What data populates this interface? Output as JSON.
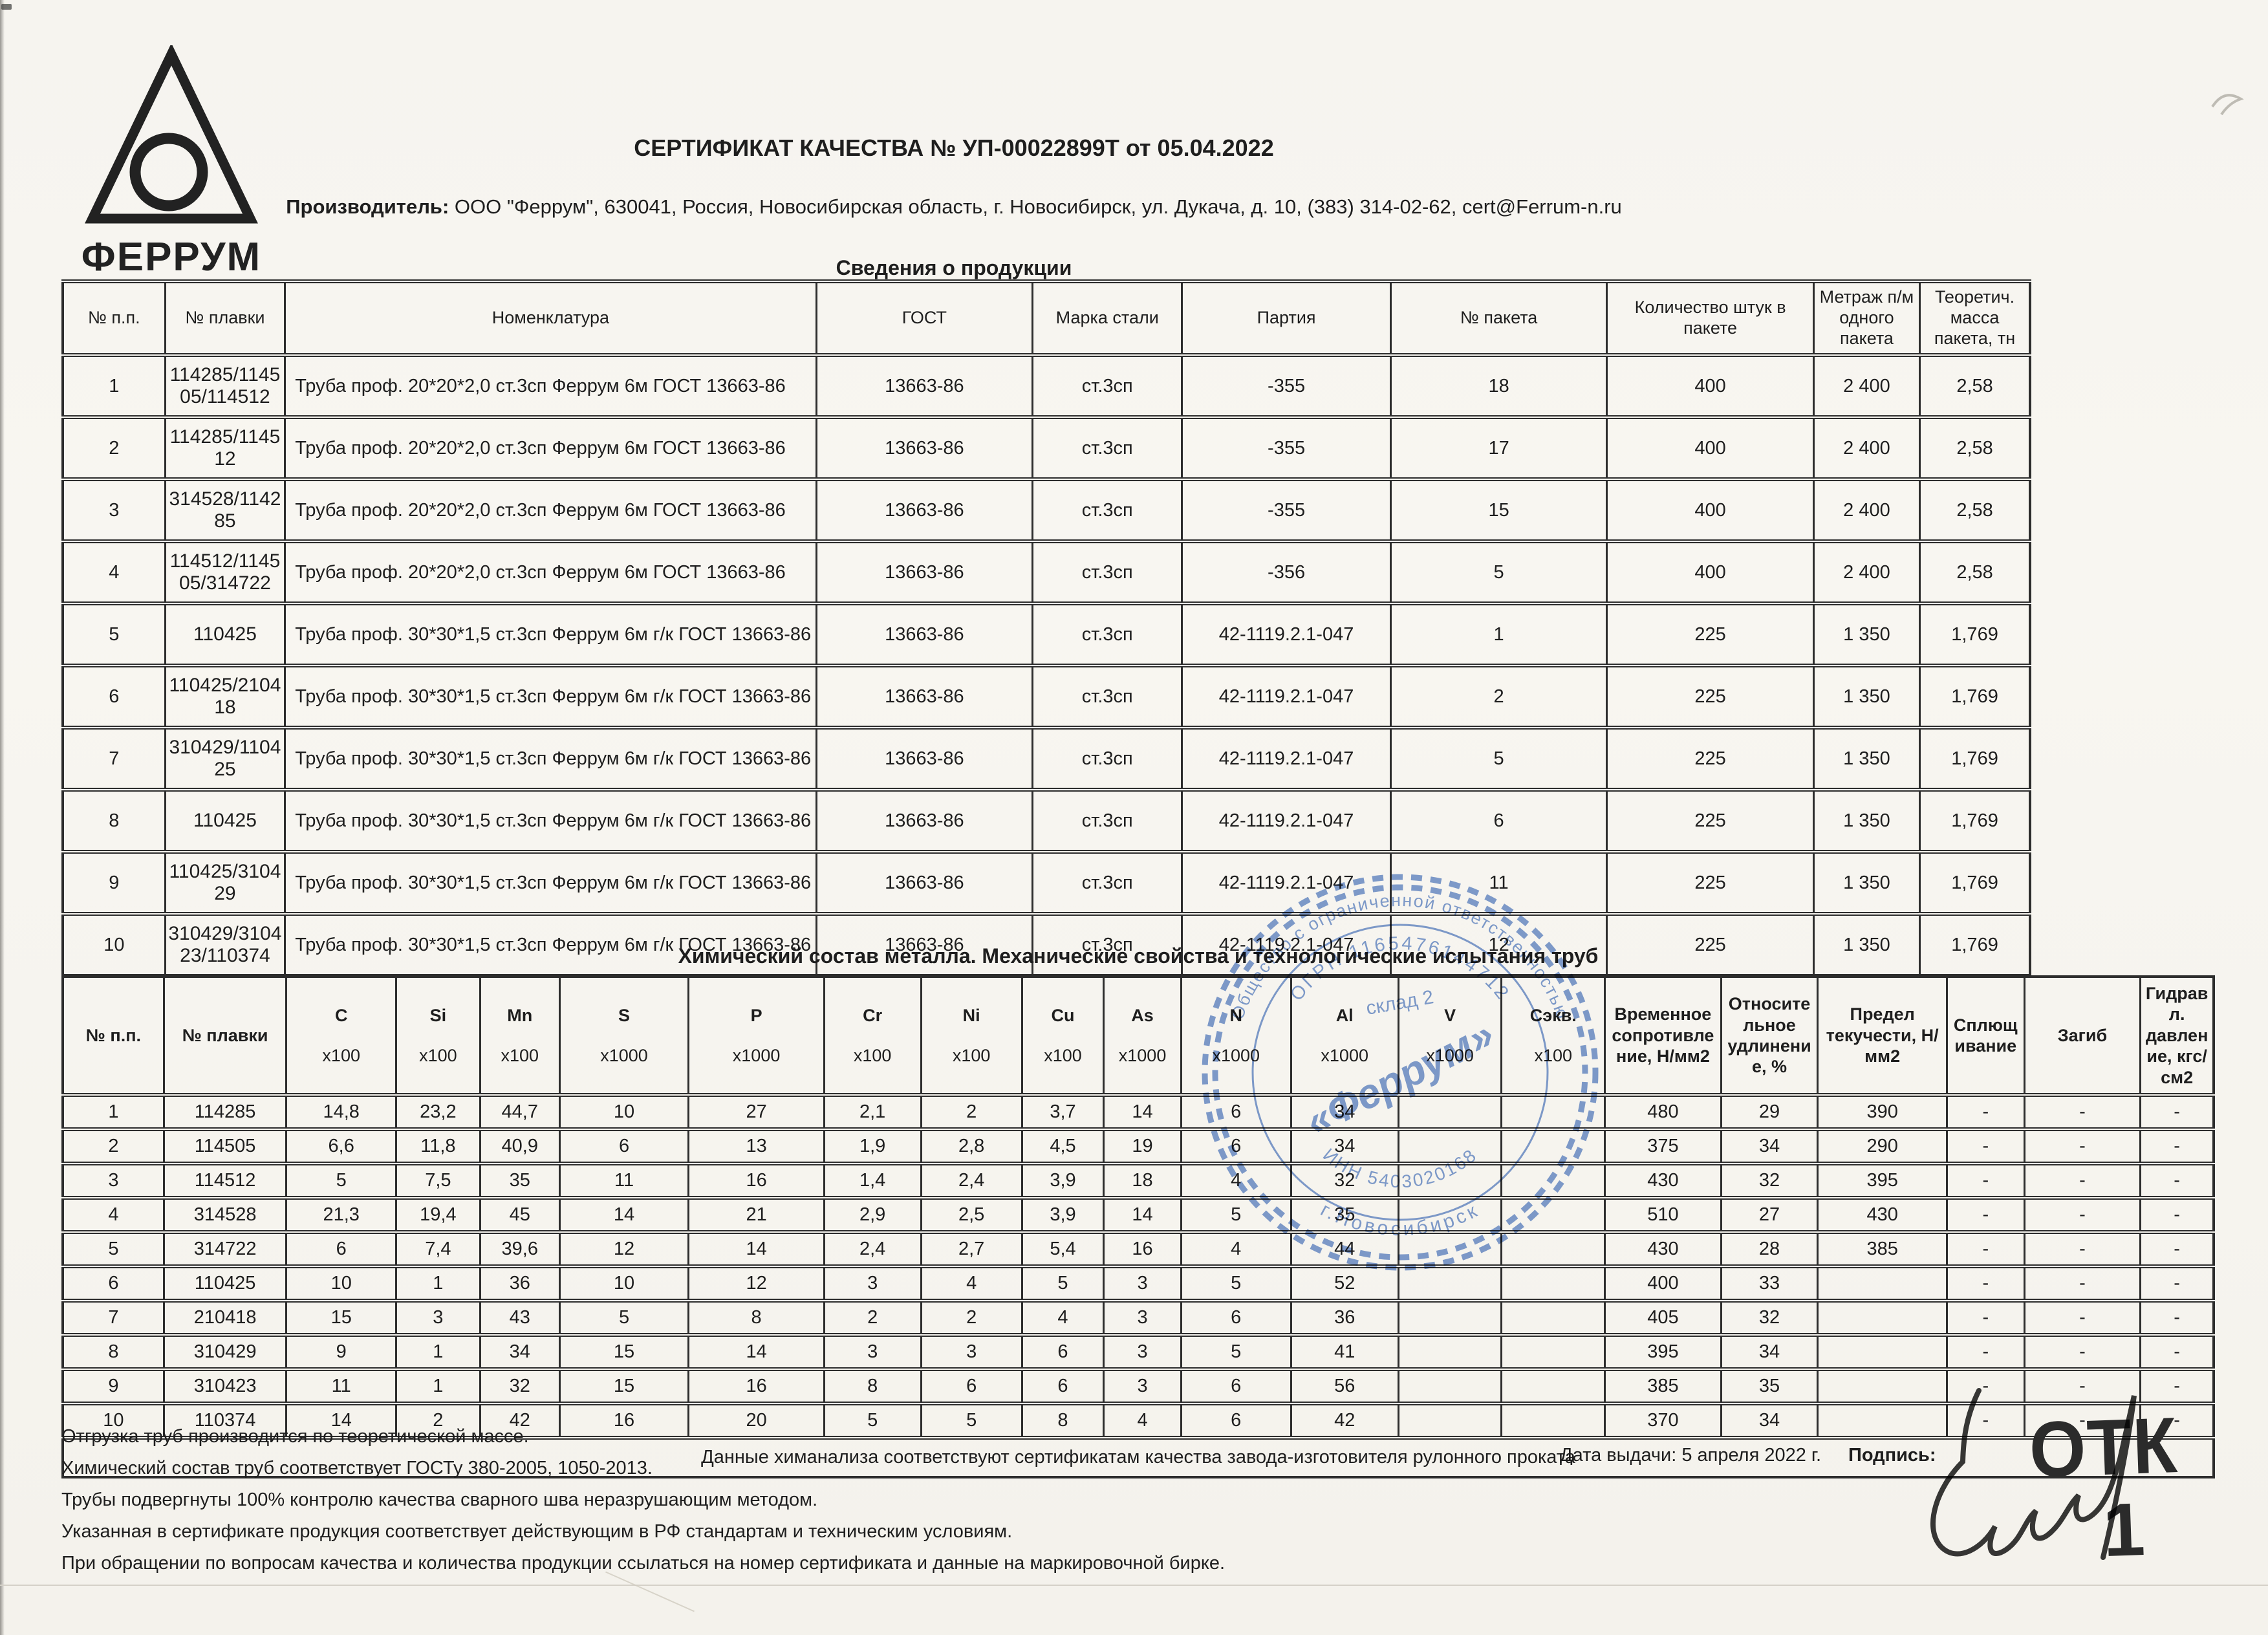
{
  "page": {
    "title": "СЕРТИФИКАТ КАЧЕСТВА № УП-00022899Т от 05.04.2022",
    "producer_label": "Производитель:",
    "producer_text": "ООО \"Феррум\", 630041, Россия, Новосибирская область, г. Новосибирск, ул. Дукача, д. 10, (383) 314-02-62, cert@Ferrum-n.ru",
    "logo_text": "ФЕРРУМ"
  },
  "products": {
    "section_title": "Сведения о продукции",
    "columns": [
      "№ п.п.",
      "№ плавки",
      "Номенклатура",
      "ГОСТ",
      "Марка стали",
      "Партия",
      "№ пакета",
      "Количество штук в пакете",
      "Метраж п/м одного пакета",
      "Теоретич. масса пакета, тн"
    ],
    "rows": [
      [
        "1",
        "114285/114505/114512",
        "Труба проф. 20*20*2,0 ст.3сп Феррум 6м ГОСТ 13663-86",
        "13663-86",
        "ст.3сп",
        "-355",
        "18",
        "400",
        "2 400",
        "2,58"
      ],
      [
        "2",
        "114285/114512",
        "Труба проф. 20*20*2,0 ст.3сп Феррум 6м ГОСТ 13663-86",
        "13663-86",
        "ст.3сп",
        "-355",
        "17",
        "400",
        "2 400",
        "2,58"
      ],
      [
        "3",
        "314528/114285",
        "Труба проф. 20*20*2,0 ст.3сп Феррум 6м ГОСТ 13663-86",
        "13663-86",
        "ст.3сп",
        "-355",
        "15",
        "400",
        "2 400",
        "2,58"
      ],
      [
        "4",
        "114512/114505/314722",
        "Труба проф. 20*20*2,0 ст.3сп Феррум 6м ГОСТ 13663-86",
        "13663-86",
        "ст.3сп",
        "-356",
        "5",
        "400",
        "2 400",
        "2,58"
      ],
      [
        "5",
        "110425",
        "Труба проф. 30*30*1,5 ст.3сп Феррум 6м г/к ГОСТ 13663-86",
        "13663-86",
        "ст.3сп",
        "42-1119.2.1-047",
        "1",
        "225",
        "1 350",
        "1,769"
      ],
      [
        "6",
        "110425/210418",
        "Труба проф. 30*30*1,5 ст.3сп Феррум 6м г/к ГОСТ 13663-86",
        "13663-86",
        "ст.3сп",
        "42-1119.2.1-047",
        "2",
        "225",
        "1 350",
        "1,769"
      ],
      [
        "7",
        "310429/110425",
        "Труба проф. 30*30*1,5 ст.3сп Феррум 6м г/к ГОСТ 13663-86",
        "13663-86",
        "ст.3сп",
        "42-1119.2.1-047",
        "5",
        "225",
        "1 350",
        "1,769"
      ],
      [
        "8",
        "110425",
        "Труба проф. 30*30*1,5 ст.3сп Феррум 6м г/к ГОСТ 13663-86",
        "13663-86",
        "ст.3сп",
        "42-1119.2.1-047",
        "6",
        "225",
        "1 350",
        "1,769"
      ],
      [
        "9",
        "110425/310429",
        "Труба проф. 30*30*1,5 ст.3сп Феррум 6м г/к ГОСТ 13663-86",
        "13663-86",
        "ст.3сп",
        "42-1119.2.1-047",
        "11",
        "225",
        "1 350",
        "1,769"
      ],
      [
        "10",
        "310429/310423/110374",
        "Труба проф. 30*30*1,5 ст.3сп Феррум 6м г/к ГОСТ 13663-86",
        "13663-86",
        "ст.3сп",
        "42-1119.2.1-047",
        "12",
        "225",
        "1 350",
        "1,769"
      ]
    ]
  },
  "chem": {
    "section_title": "Химический состав металла. Механические свойства  и технологические испытания труб",
    "columns": [
      {
        "label": "№ п.п.",
        "sub": ""
      },
      {
        "label": "№ плавки",
        "sub": ""
      },
      {
        "label": "C",
        "sub": "x100"
      },
      {
        "label": "Si",
        "sub": "x100"
      },
      {
        "label": "Mn",
        "sub": "x100"
      },
      {
        "label": "S",
        "sub": "x1000"
      },
      {
        "label": "P",
        "sub": "x1000"
      },
      {
        "label": "Cr",
        "sub": "x100"
      },
      {
        "label": "Ni",
        "sub": "x100"
      },
      {
        "label": "Cu",
        "sub": "x100"
      },
      {
        "label": "As",
        "sub": "x1000"
      },
      {
        "label": "N",
        "sub": "x1000"
      },
      {
        "label": "Al",
        "sub": "x1000"
      },
      {
        "label": "V",
        "sub": "x1000"
      },
      {
        "label": "Сэкв.",
        "sub": "x100"
      },
      {
        "label": "Временное сопротивление, Н/мм2",
        "sub": ""
      },
      {
        "label": "Относительное удлинение, %",
        "sub": ""
      },
      {
        "label": "Предел текучести, Н/мм2",
        "sub": ""
      },
      {
        "label": "Сплющивание",
        "sub": ""
      },
      {
        "label": "Загиб",
        "sub": ""
      },
      {
        "label": "Гидравл. давление, кгс/см2",
        "sub": ""
      }
    ],
    "rows": [
      [
        "1",
        "114285",
        "14,8",
        "23,2",
        "44,7",
        "10",
        "27",
        "2,1",
        "2",
        "3,7",
        "14",
        "6",
        "34",
        "",
        "",
        "480",
        "29",
        "390",
        "-",
        "-",
        "-"
      ],
      [
        "2",
        "114505",
        "6,6",
        "11,8",
        "40,9",
        "6",
        "13",
        "1,9",
        "2,8",
        "4,5",
        "19",
        "6",
        "34",
        "",
        "",
        "375",
        "34",
        "290",
        "-",
        "-",
        "-"
      ],
      [
        "3",
        "114512",
        "5",
        "7,5",
        "35",
        "11",
        "16",
        "1,4",
        "2,4",
        "3,9",
        "18",
        "4",
        "32",
        "",
        "",
        "430",
        "32",
        "395",
        "-",
        "-",
        "-"
      ],
      [
        "4",
        "314528",
        "21,3",
        "19,4",
        "45",
        "14",
        "21",
        "2,9",
        "2,5",
        "3,9",
        "14",
        "5",
        "35",
        "",
        "",
        "510",
        "27",
        "430",
        "-",
        "-",
        "-"
      ],
      [
        "5",
        "314722",
        "6",
        "7,4",
        "39,6",
        "12",
        "14",
        "2,4",
        "2,7",
        "5,4",
        "16",
        "4",
        "44",
        "",
        "",
        "430",
        "28",
        "385",
        "-",
        "-",
        "-"
      ],
      [
        "6",
        "110425",
        "10",
        "1",
        "36",
        "10",
        "12",
        "3",
        "4",
        "5",
        "3",
        "5",
        "52",
        "",
        "",
        "400",
        "33",
        "",
        "-",
        "-",
        "-"
      ],
      [
        "7",
        "210418",
        "15",
        "3",
        "43",
        "5",
        "8",
        "2",
        "2",
        "4",
        "3",
        "6",
        "36",
        "",
        "",
        "405",
        "32",
        "",
        "-",
        "-",
        "-"
      ],
      [
        "8",
        "310429",
        "9",
        "1",
        "34",
        "15",
        "14",
        "3",
        "3",
        "6",
        "3",
        "5",
        "41",
        "",
        "",
        "395",
        "34",
        "",
        "-",
        "-",
        "-"
      ],
      [
        "9",
        "310423",
        "11",
        "1",
        "32",
        "15",
        "16",
        "8",
        "6",
        "6",
        "3",
        "6",
        "56",
        "",
        "",
        "385",
        "35",
        "",
        "-",
        "-",
        "-"
      ],
      [
        "10",
        "110374",
        "14",
        "2",
        "42",
        "16",
        "20",
        "5",
        "5",
        "8",
        "4",
        "6",
        "42",
        "",
        "",
        "370",
        "34",
        "",
        "-",
        "-",
        "-"
      ]
    ],
    "footer_note": "Данные химанализа соответствуют сертификатам качества завода-изготовителя рулонного проката"
  },
  "notes": [
    "Отгрузка труб производится по теоретической массе.",
    "Химический состав труб соответствует ГОСТу 380-2005, 1050-2013.",
    "Трубы подвергнуты 100% контролю качества сварного шва неразрушающим методом.",
    "Указанная в сертификате продукция соответствует действующим в РФ стандартам и техническим условиям.",
    "При обращении по вопросам качества и количества продукции ссылаться на номер сертификата и данные на маркировочной бирке."
  ],
  "signature_block": {
    "date_label": "Дата выдачи: 5 апреля 2022 г.",
    "sign_label": "Подпись:",
    "otk_text": "ОТК",
    "otk_number": "1"
  },
  "stamp": {
    "ring_text": "Общество с ограниченной ответственностью",
    "ogrn": "ОГРН 1165476144712",
    "sklad": "склад 2",
    "center": "«Феррум»",
    "inn": "ИНН 5403020168",
    "city": "г.Новосибирск",
    "color": "#5d84c9"
  },
  "colors": {
    "ink": "#1e1e1e",
    "border": "#2d2d2d",
    "paper": "#f6f4ef",
    "stamp_blue": "#5d84c9"
  }
}
